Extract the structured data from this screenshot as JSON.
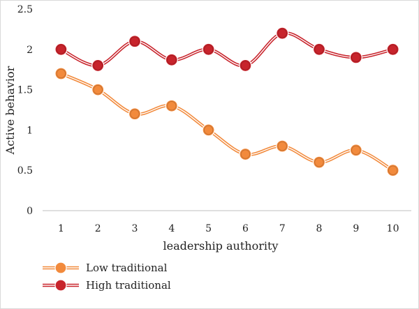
{
  "chart_data": {
    "type": "line",
    "title": "",
    "xlabel": "leadership authority",
    "ylabel": "Active behavior",
    "categories": [
      "1",
      "2",
      "3",
      "4",
      "5",
      "6",
      "7",
      "8",
      "9",
      "10"
    ],
    "ylim": [
      0,
      2.5
    ],
    "yticks": [
      "0",
      "0.5",
      "1",
      "1.5",
      "2",
      "2.5"
    ],
    "grid": false,
    "legend_position": "bottom-left",
    "series": [
      {
        "name": "Low traditional",
        "color": "#f28a3c",
        "values": [
          1.7,
          1.5,
          1.2,
          1.3,
          1.0,
          0.7,
          0.8,
          0.6,
          0.75,
          0.5
        ]
      },
      {
        "name": "High traditional",
        "color": "#c8242c",
        "values": [
          2.0,
          1.8,
          2.1,
          1.87,
          2.0,
          1.8,
          2.2,
          2.0,
          1.9,
          2.0
        ]
      }
    ]
  }
}
